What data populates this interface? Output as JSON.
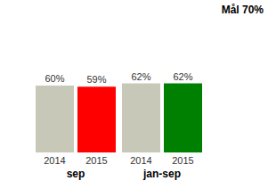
{
  "title": "Mål 70%",
  "chart_data": [
    {
      "type": "bar",
      "title": "sep",
      "categories": [
        "2014",
        "2015"
      ],
      "values": [
        60,
        59
      ],
      "value_labels": [
        "60%",
        "59%"
      ],
      "colors": [
        "#c8c8b9",
        "#ff0000"
      ],
      "ylim": [
        0,
        100
      ],
      "data_labels": true,
      "tick_labels": "x",
      "grid": false
    },
    {
      "type": "bar",
      "title": "jan-sep",
      "categories": [
        "2014",
        "2015"
      ],
      "values": [
        62,
        62
      ],
      "value_labels": [
        "62%",
        "62%"
      ],
      "colors": [
        "#c8c8b9",
        "#008000"
      ],
      "ylim": [
        0,
        100
      ],
      "data_labels": true,
      "tick_labels": "x",
      "grid": false
    }
  ]
}
